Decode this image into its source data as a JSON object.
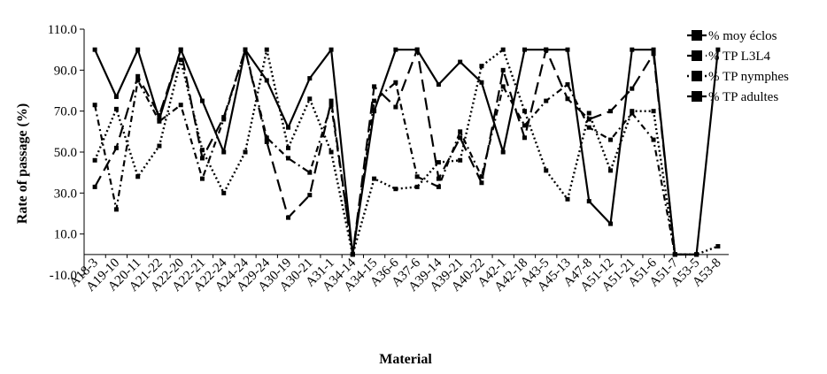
{
  "chart_data": {
    "type": "line",
    "title": "",
    "xlabel": "Material",
    "ylabel": "Rate of passage  (%)",
    "ylim": [
      -10,
      110
    ],
    "yticks": [
      "-10.0",
      "10.0",
      "30.0",
      "50.0",
      "70.0",
      "90.0",
      "110.0"
    ],
    "legend_position": "top-right",
    "grid": false,
    "categories": [
      "A18-3",
      "A19-10",
      "A20-11",
      "A21-22",
      "A22-20",
      "A22-21",
      "A22-24",
      "A24-24",
      "A29-24",
      "A30-19",
      "A30-21",
      "A31-1",
      "A34-14",
      "A34-15",
      "A36-6",
      "A37-6",
      "A39-14",
      "A39-21",
      "A40-22",
      "A42-1",
      "A42-18",
      "A43-5",
      "A45-13",
      "A47-8",
      "A51-12",
      "A51-21",
      "A51-6",
      "A51-7",
      "A53-5",
      "A53-8"
    ],
    "series": [
      {
        "name": "% moy éclos",
        "style": "solid",
        "values": [
          100,
          77,
          100,
          66,
          100,
          75,
          50,
          100,
          85,
          62,
          86,
          100,
          0,
          70,
          100,
          100,
          83,
          94,
          84,
          50,
          100,
          100,
          100,
          26,
          15,
          100,
          100,
          0,
          0,
          100
        ]
      },
      {
        "name": "% TP L3L4",
        "style": "long-dash",
        "values": [
          33,
          52,
          87,
          68,
          100,
          47,
          67,
          100,
          55,
          18,
          29,
          75,
          0,
          82,
          72,
          100,
          37,
          57,
          35,
          90,
          57,
          100,
          76,
          66,
          70,
          81,
          98,
          0,
          0,
          null
        ]
      },
      {
        "name": "% TP nymphes",
        "style": "dotted",
        "values": [
          46,
          71,
          38,
          53,
          95,
          51,
          30,
          50,
          100,
          52,
          76,
          50,
          0,
          37,
          32,
          33,
          45,
          46,
          92,
          100,
          70,
          41,
          27,
          69,
          41,
          70,
          70,
          0,
          0,
          4
        ]
      },
      {
        "name": "% TP adultes",
        "style": "dash-dot",
        "values": [
          73,
          22,
          85,
          65,
          73,
          37,
          66,
          100,
          57,
          47,
          40,
          73,
          0,
          75,
          84,
          38,
          33,
          60,
          38,
          82,
          63,
          75,
          83,
          62,
          56,
          69,
          56,
          0,
          0,
          null
        ]
      }
    ]
  }
}
